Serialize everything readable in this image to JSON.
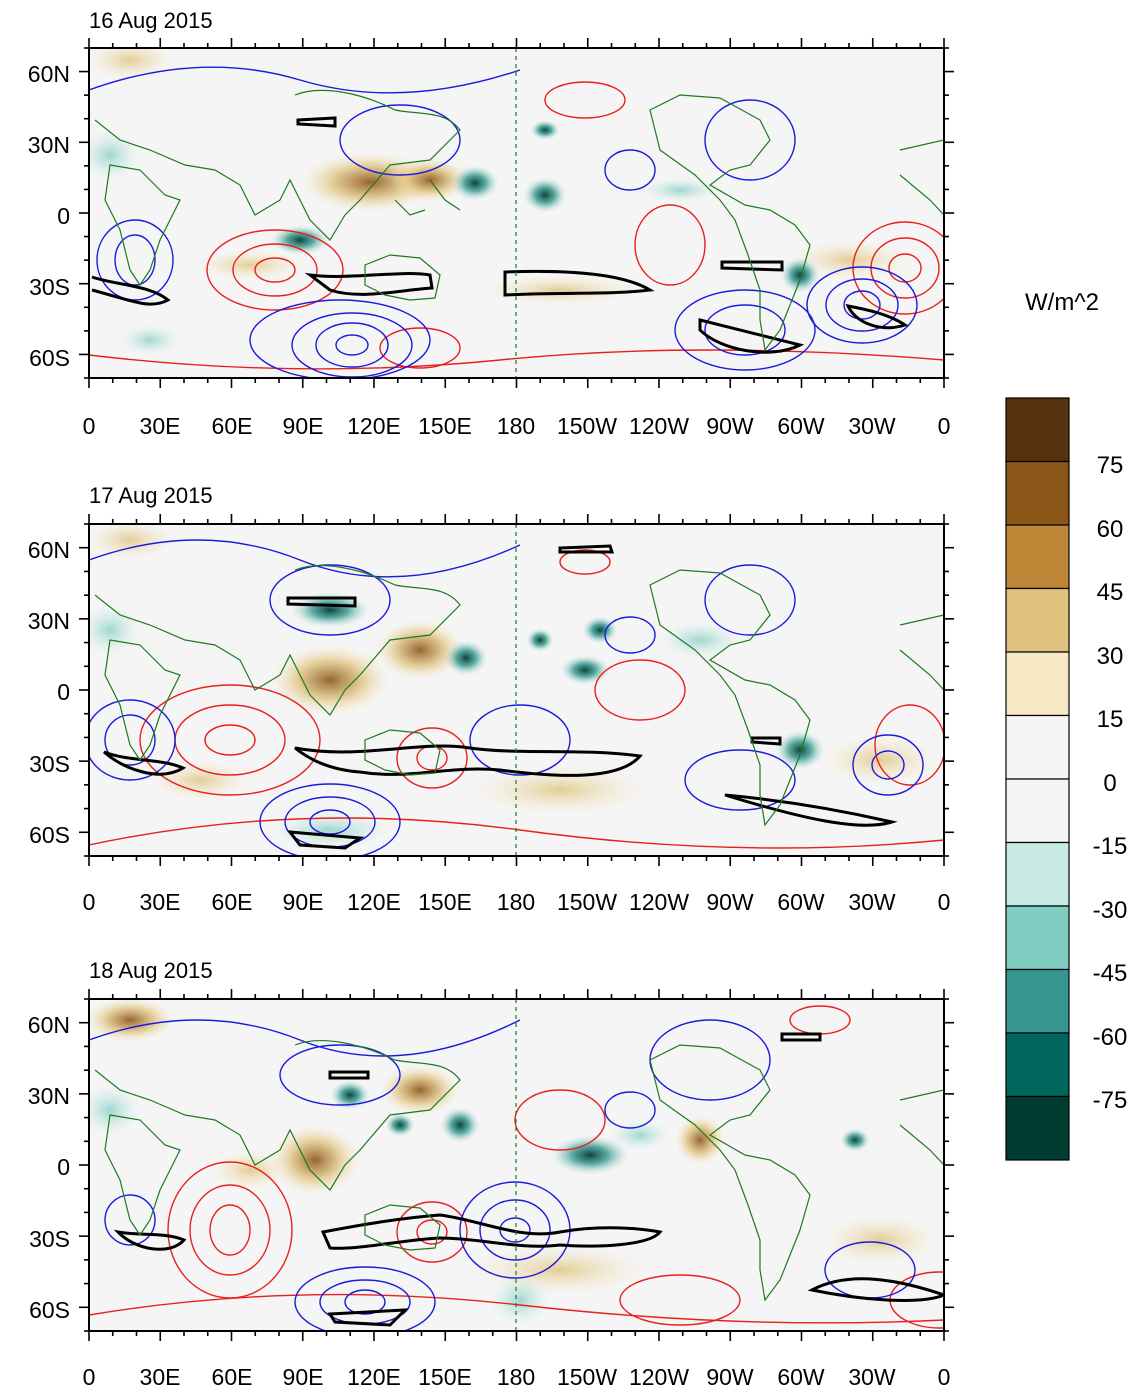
{
  "figure": {
    "units_label": "W/m^2",
    "panels": [
      {
        "id": "p1",
        "date": "16 Aug 2015"
      },
      {
        "id": "p2",
        "date": "17 Aug 2015"
      },
      {
        "id": "p3",
        "date": "18 Aug 2015"
      }
    ],
    "lat_labels": [
      "60N",
      "30N",
      "0",
      "30S",
      "60S"
    ],
    "lon_labels": [
      "0",
      "30E",
      "60E",
      "90E",
      "120E",
      "150E",
      "180",
      "150W",
      "120W",
      "90W",
      "60W",
      "30W",
      "0"
    ],
    "colorbar": {
      "levels": [
        "75",
        "60",
        "45",
        "30",
        "15",
        "0",
        "-15",
        "-30",
        "-45",
        "-60",
        "-75"
      ],
      "colors": [
        "#553310",
        "#8c5618",
        "#bf8637",
        "#dfc27d",
        "#f6e8c3",
        "#f5f5f5",
        "#f5f5f5",
        "#c7eae5",
        "#80cdc1",
        "#35978f",
        "#01665e",
        "#003c30"
      ]
    },
    "contour_colors": {
      "positive": "#e8201c",
      "negative": "#1a1adc",
      "coast": "#1f7a1f",
      "zero": "#000000"
    }
  }
}
